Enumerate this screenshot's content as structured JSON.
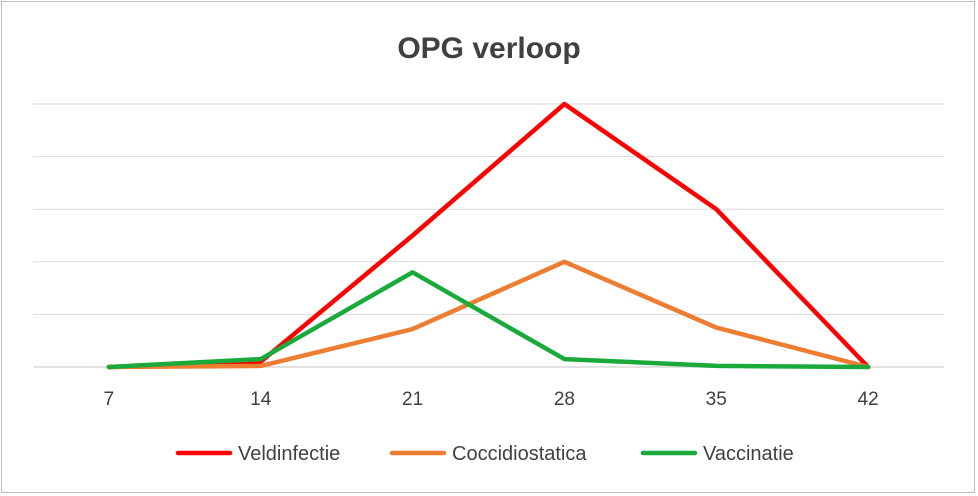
{
  "chart_data": {
    "type": "line",
    "title": "OPG verloop",
    "xlabel": "",
    "ylabel": "",
    "x": [
      "7",
      "14",
      "21",
      "28",
      "35",
      "42"
    ],
    "ylim": [
      0,
      5
    ],
    "y_gridlines": 5,
    "y_tick_labels_visible": false,
    "legend_position": "bottom",
    "series": [
      {
        "name": "Veldinfectie",
        "color": "#ff0000",
        "values": [
          0,
          0.1,
          2.5,
          5.0,
          3.0,
          0
        ]
      },
      {
        "name": "Coccidiostatica",
        "color": "#ed7d31",
        "values": [
          0,
          0.02,
          0.72,
          2.0,
          0.75,
          0
        ]
      },
      {
        "name": "Vaccinatie",
        "color": "#1aaa3c",
        "values": [
          0,
          0.15,
          1.8,
          0.15,
          0.02,
          0
        ]
      }
    ]
  }
}
